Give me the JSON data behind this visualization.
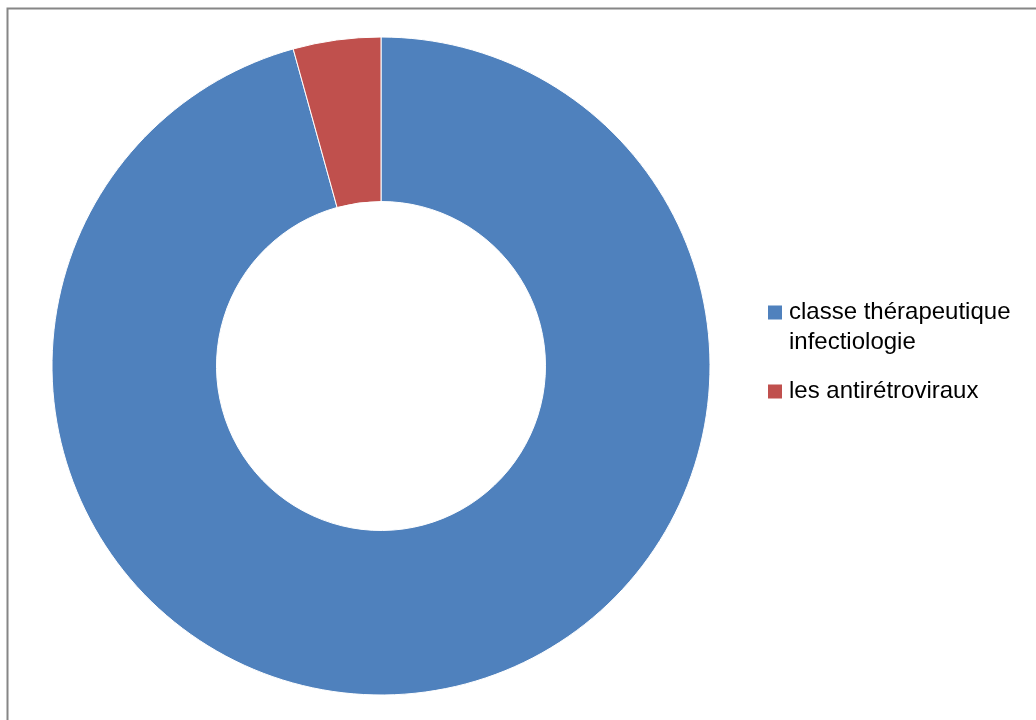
{
  "chart_data": {
    "type": "donut",
    "categories": [
      "classe thérapeutique infectiologie",
      "les antirétroviraux"
    ],
    "values": [
      95.7,
      4.3
    ],
    "colors": [
      "#4f81bd",
      "#c0504d"
    ],
    "legend": "right"
  }
}
